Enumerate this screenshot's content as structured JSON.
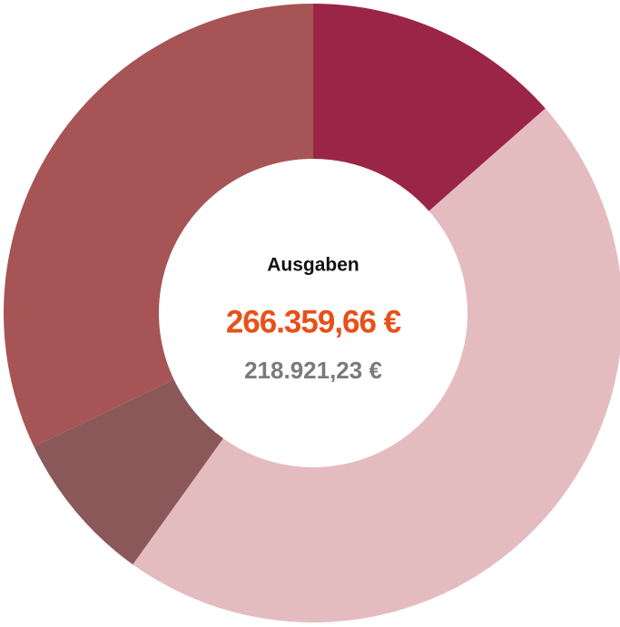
{
  "chart_data": {
    "type": "donut",
    "values": [
      13.5,
      46.4,
      8.0,
      32.1
    ],
    "colors": [
      "#9a2547",
      "#e4bcc0",
      "#8b585a",
      "#a65455"
    ],
    "center_title": "Ausgaben",
    "center_value": "266.359,66 €",
    "center_subvalue": "218.921,23 €"
  }
}
